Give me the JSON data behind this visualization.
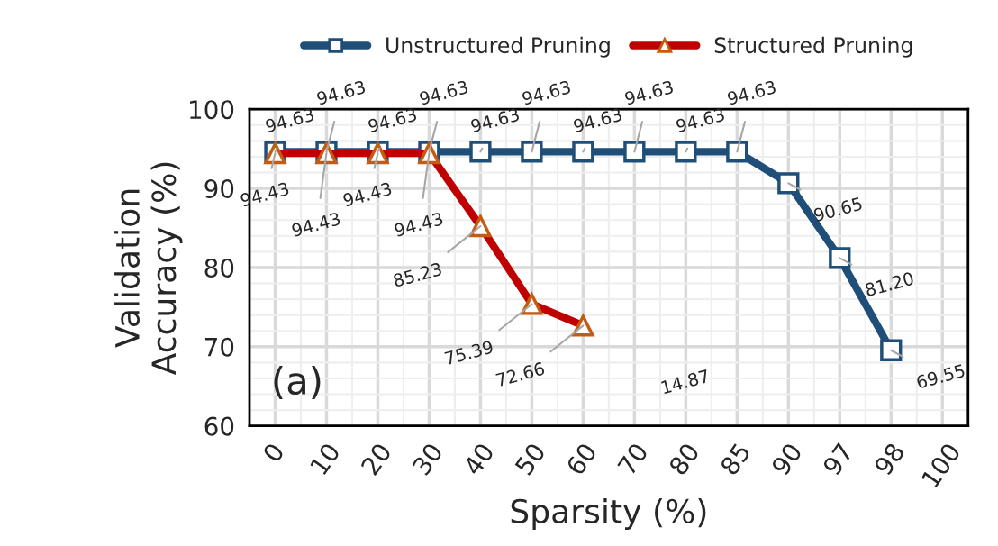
{
  "chart_data": {
    "type": "line",
    "xlabel": "Sparsity (%)",
    "ylabel": "Validation\nAccuracy (%)",
    "categories": [
      "0",
      "10",
      "20",
      "30",
      "40",
      "50",
      "60",
      "70",
      "80",
      "85",
      "90",
      "97",
      "98",
      "100"
    ],
    "series": [
      {
        "name": "Unstructured Pruning",
        "color": "#1f4e79",
        "marker": "square",
        "values": [
          94.63,
          94.63,
          94.63,
          94.63,
          94.63,
          94.63,
          94.63,
          94.63,
          94.63,
          94.63,
          90.65,
          81.2,
          69.55,
          null
        ],
        "value_labels": [
          "94.63",
          "94.63",
          "94.63",
          "94.63",
          "94.63",
          "94.63",
          "94.63",
          "94.63",
          "94.63",
          "94.63",
          "90.65",
          "81.20",
          "69.55",
          null
        ]
      },
      {
        "name": "Structured Pruning",
        "color": "#c00000",
        "marker": "triangle",
        "values": [
          94.43,
          94.43,
          94.43,
          94.43,
          85.23,
          75.39,
          72.66,
          null,
          null,
          null,
          null,
          null,
          null,
          null
        ],
        "value_labels": [
          "94.43",
          "94.43",
          "94.43",
          "94.43",
          "85.23",
          "75.39",
          "72.66",
          null,
          null,
          null,
          null,
          null,
          null,
          null
        ]
      }
    ],
    "ylim": [
      60,
      100
    ],
    "yticks": [
      60,
      70,
      80,
      90,
      100
    ],
    "grid": true,
    "legend": "top",
    "line_style": "solid",
    "annotations": [
      "(a)",
      "14.87"
    ]
  }
}
